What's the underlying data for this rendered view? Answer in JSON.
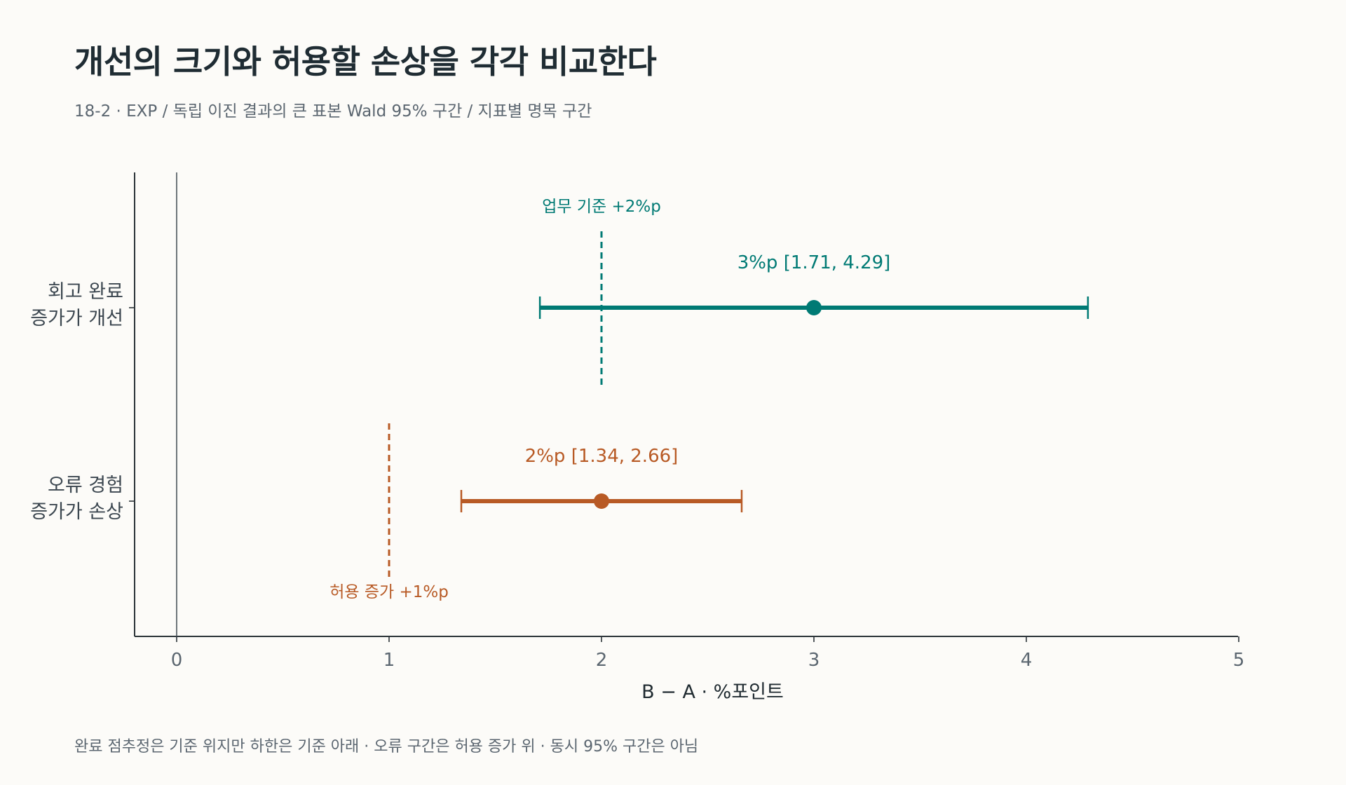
{
  "title": "개선의 크기와 허용할 손상을 각각 비교한다",
  "subtitle": "18-2 · EXP / 독립 이진 결과의 큰 표본 Wald 95% 구간 / 지표별 명목 구간",
  "footnote": "완료 점추정은 기준 위지만 하한은 기준 아래 · 오류 구간은 허용 증가 위 · 동시 95% 구간은 아님",
  "chart_data": {
    "type": "forest",
    "xlabel": "B − A · %포인트",
    "xlim": [
      -0.2,
      5
    ],
    "xticks": [
      0,
      1,
      2,
      3,
      4,
      5
    ],
    "zero_line": 0,
    "rows": [
      {
        "label_lines": [
          "회고 완료",
          "증가가 개선"
        ],
        "estimate": 3,
        "lower": 1.71,
        "upper": 4.29,
        "est_label": "3%p [1.71, 4.29]",
        "color": "#007a74",
        "reference": {
          "value": 2,
          "label": "업무 기준 +2%p",
          "label_position": "above"
        }
      },
      {
        "label_lines": [
          "오류 경험",
          "증가가 손상"
        ],
        "estimate": 2,
        "lower": 1.34,
        "upper": 2.66,
        "est_label": "2%p [1.34, 2.66]",
        "color": "#b85a25",
        "reference": {
          "value": 1,
          "label": "허용 증가 +1%p",
          "label_position": "below"
        }
      }
    ]
  }
}
